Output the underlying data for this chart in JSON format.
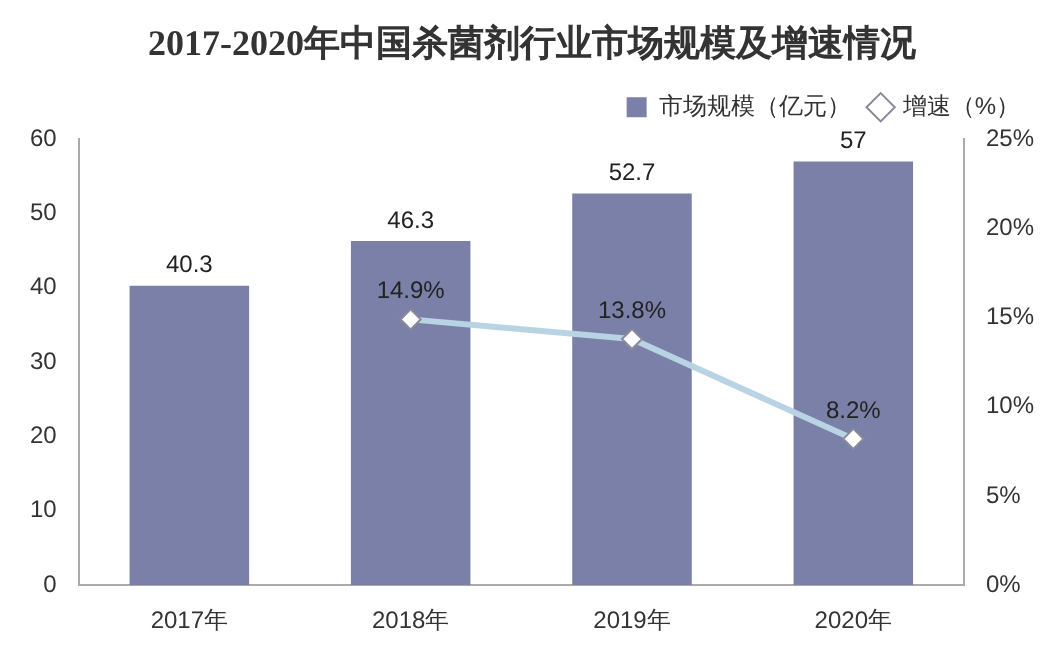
{
  "chart_data": {
    "type": "bar",
    "title": "2017-2020年中国杀菌剂行业市场规模及增速情况",
    "categories": [
      "2017年",
      "2018年",
      "2019年",
      "2020年"
    ],
    "series": [
      {
        "name": "市场规模（亿元）",
        "color": "#7b80a8",
        "values": [
          40.3,
          46.3,
          52.7,
          57
        ],
        "value_labels": [
          "40.3",
          "46.3",
          "52.7",
          "57"
        ]
      },
      {
        "name": "增速（%）",
        "type": "line",
        "axis": "y2",
        "marker": "diamond",
        "color": "#b8d3e3",
        "values": [
          null,
          14.9,
          13.8,
          8.2
        ],
        "value_labels": [
          null,
          "14.9%",
          "13.8%",
          "8.2%"
        ]
      }
    ],
    "ylim": [
      0,
      60
    ],
    "yticks": [
      0,
      10,
      20,
      30,
      40,
      50,
      60
    ],
    "y2lim": [
      0,
      25
    ],
    "y2ticks": [
      {
        "value": 0,
        "label": "0%"
      },
      {
        "value": 5,
        "label": "5%"
      },
      {
        "value": 10,
        "label": "10%"
      },
      {
        "value": 15,
        "label": "15%"
      },
      {
        "value": 20,
        "label": "20%"
      },
      {
        "value": 25,
        "label": "25%"
      }
    ],
    "legend": "top right"
  }
}
